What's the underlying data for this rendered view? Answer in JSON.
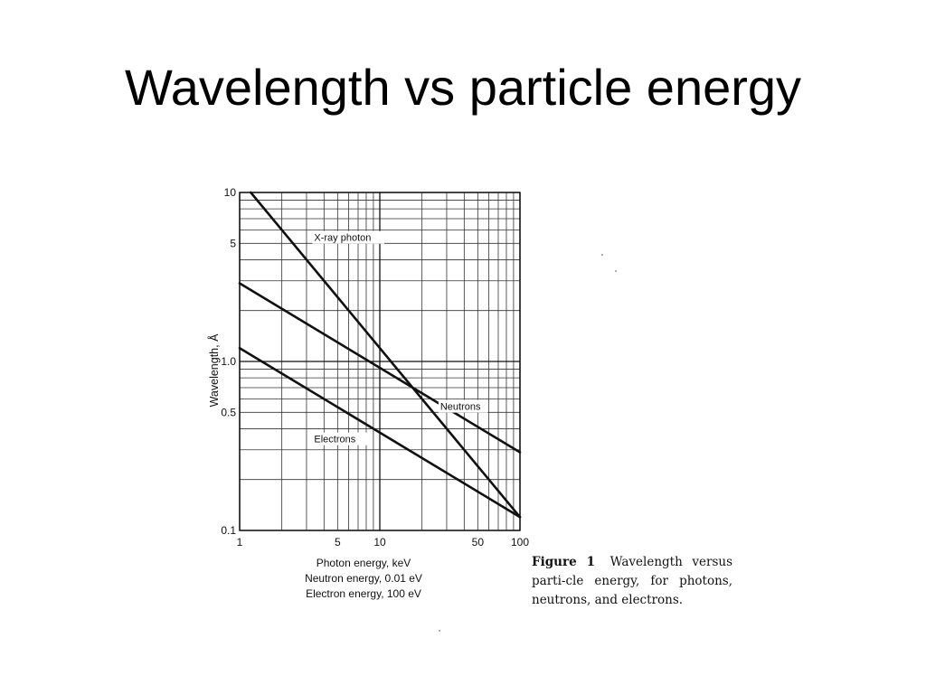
{
  "slide": {
    "title": "Wavelength vs particle energy"
  },
  "figure": {
    "caption_label": "Figure 1",
    "caption_text": "Wavelength versus parti-cle energy, for photons, neutrons, and electrons."
  },
  "chart_data": {
    "type": "line",
    "x_scale": "log",
    "y_scale": "log",
    "xlim": [
      1,
      100
    ],
    "ylim": [
      0.1,
      10
    ],
    "grid": true,
    "ylabel": "Wavelength, Å",
    "xlabel_lines": [
      "Photon energy, keV",
      "Neutron energy, 0.01 eV",
      "Electron energy, 100 eV"
    ],
    "x_ticks": [
      {
        "value": 1,
        "label": "1"
      },
      {
        "value": 5,
        "label": "5"
      },
      {
        "value": 10,
        "label": "10"
      },
      {
        "value": 50,
        "label": "50"
      },
      {
        "value": 100,
        "label": "100"
      }
    ],
    "y_ticks": [
      {
        "value": 0.1,
        "label": "0.1"
      },
      {
        "value": 0.5,
        "label": "0.5"
      },
      {
        "value": 1.0,
        "label": "1.0"
      },
      {
        "value": 5,
        "label": "5"
      },
      {
        "value": 10,
        "label": "10"
      }
    ],
    "series": [
      {
        "name": "X-ray photon",
        "x": [
          1.2,
          100
        ],
        "y": [
          10,
          0.12
        ]
      },
      {
        "name": "Neutrons",
        "x": [
          1,
          100
        ],
        "y": [
          2.9,
          0.29
        ]
      },
      {
        "name": "Electrons",
        "x": [
          1,
          100
        ],
        "y": [
          1.2,
          0.12
        ]
      }
    ]
  }
}
